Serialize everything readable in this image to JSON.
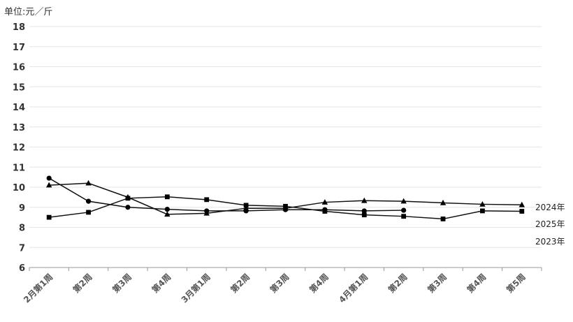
{
  "chart_data": {
    "type": "line",
    "unit_label": "单位:元／斤",
    "categories": [
      "2月第1周",
      "第2周",
      "第3周",
      "第4周",
      "3月第1周",
      "第2周",
      "第3周",
      "第4周",
      "4月第1周",
      "第2周",
      "第3周",
      "第4周",
      "第5周"
    ],
    "ylim": [
      6,
      18
    ],
    "yticks": [
      6,
      7,
      8,
      9,
      10,
      11,
      12,
      13,
      14,
      15,
      16,
      17,
      18
    ],
    "grid": true,
    "legend": "right, inline at line ends",
    "series": [
      {
        "name": "2024年",
        "marker": "triangle",
        "values": [
          10.1,
          10.2,
          9.5,
          8.65,
          8.7,
          8.95,
          8.95,
          9.25,
          9.33,
          9.3,
          9.22,
          9.15,
          9.12
        ]
      },
      {
        "name": "2025年",
        "marker": "circle",
        "values": [
          10.45,
          9.3,
          9.0,
          8.9,
          8.82,
          8.82,
          8.88,
          8.88,
          8.82,
          8.85,
          null,
          null,
          null
        ]
      },
      {
        "name": "2023年",
        "marker": "square",
        "values": [
          8.5,
          8.75,
          9.45,
          9.52,
          9.38,
          9.1,
          9.05,
          8.8,
          8.62,
          8.55,
          8.42,
          8.82,
          8.8
        ]
      }
    ]
  }
}
